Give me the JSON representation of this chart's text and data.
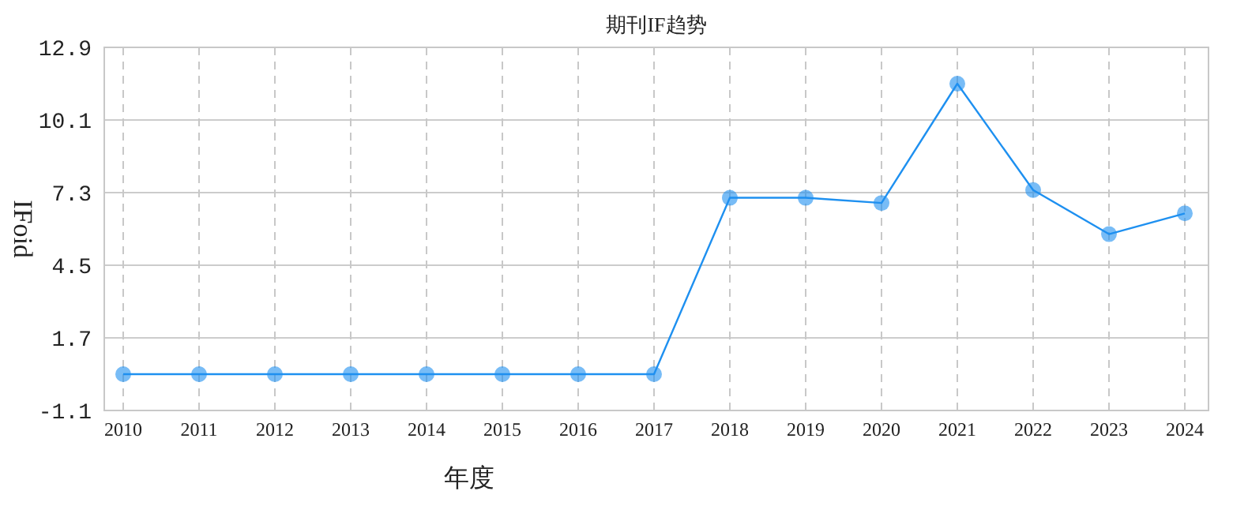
{
  "chart_data": {
    "type": "line",
    "title": "期刊IF趋势",
    "xlabel": "年度",
    "ylabel": "IFoid",
    "categories": [
      "2010",
      "2011",
      "2012",
      "2013",
      "2014",
      "2015",
      "2016",
      "2017",
      "2018",
      "2019",
      "2020",
      "2021",
      "2022",
      "2023",
      "2024"
    ],
    "series": [
      {
        "color": "#1e90f0",
        "values": [
          0.3,
          0.3,
          0.3,
          0.3,
          0.3,
          0.3,
          0.3,
          0.3,
          7.1,
          7.1,
          6.9,
          11.5,
          7.4,
          5.7,
          6.5
        ]
      }
    ],
    "ylim": [
      -1.1,
      12.9
    ],
    "yticks": [
      -1.1,
      1.7,
      4.5,
      7.3,
      10.1,
      12.9
    ],
    "grid": true,
    "marker": "circle",
    "line_style": "solid"
  }
}
